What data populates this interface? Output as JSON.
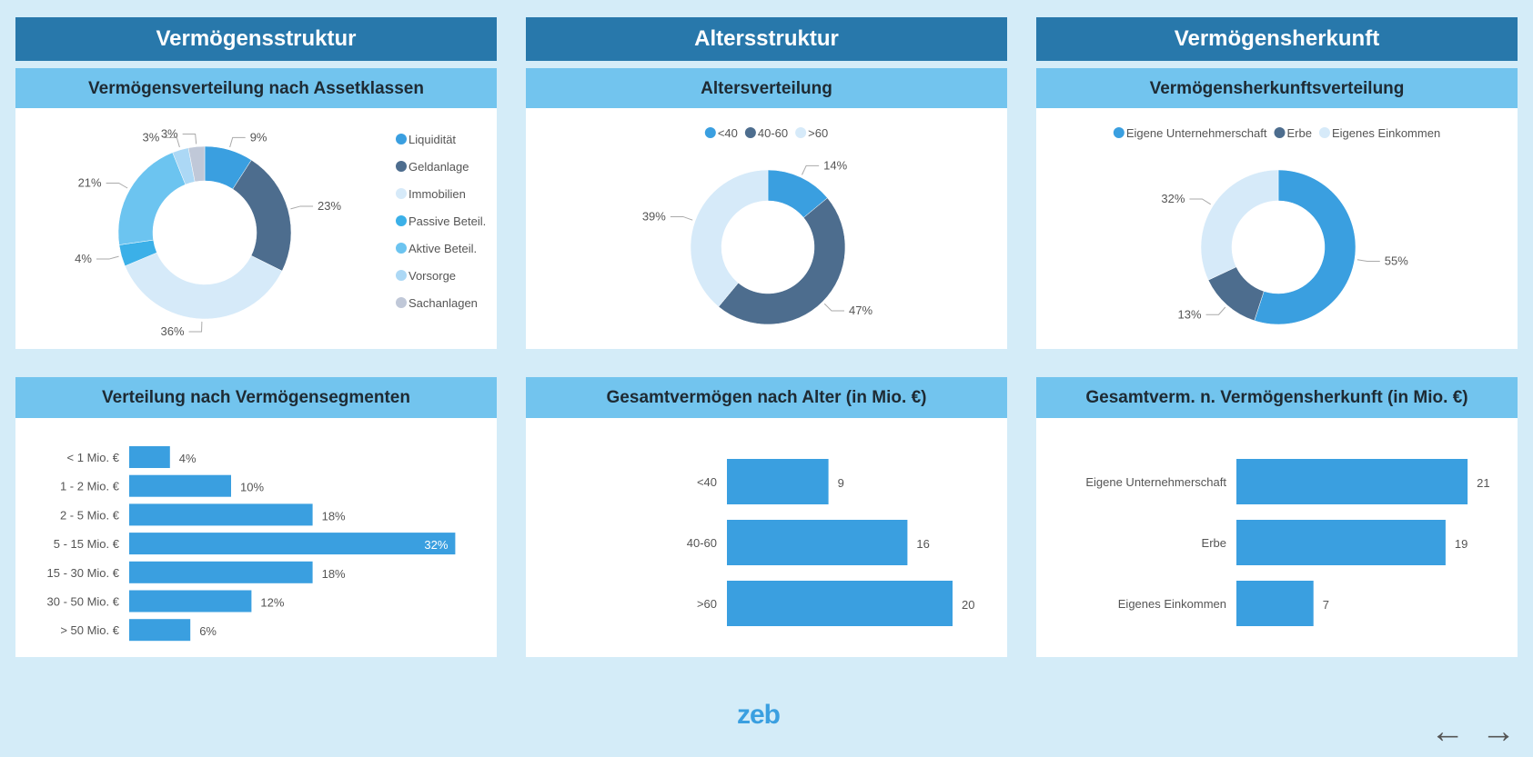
{
  "columns": [
    {
      "title": "Vermögensstruktur",
      "donut_title": "Vermögensverteilung nach Assetklassen",
      "bar_title": "Verteilung nach Vermögensegmenten"
    },
    {
      "title": "Altersstruktur",
      "donut_title": "Altersverteilung",
      "bar_title": "Gesamtvermögen nach Alter (in Mio. €)"
    },
    {
      "title": "Vermögensherkunft",
      "donut_title": "Vermögensherkunftsverteilung",
      "bar_title": "Gesamtverm. n. Vermögensherkunft (in Mio. €)"
    }
  ],
  "chart_data": [
    {
      "type": "pie",
      "title": "Vermögensverteilung nach Assetklassen",
      "legend_position": "right",
      "labels": [
        "Liquidität",
        "Geldanlage",
        "Immobilien",
        "Passive Beteil.",
        "Aktive Beteil.",
        "Vorsorge",
        "Sachanlagen"
      ],
      "values": [
        9,
        23,
        36,
        4,
        21,
        3,
        3
      ],
      "colors": [
        "#3a9fe0",
        "#4d6d8e",
        "#d6eaf9",
        "#3bb0e8",
        "#6cc4f0",
        "#acd8f5",
        "#c0c8d8"
      ]
    },
    {
      "type": "pie",
      "title": "Altersverteilung",
      "legend_position": "top",
      "labels": [
        "<40",
        "40-60",
        ">60"
      ],
      "values": [
        14,
        47,
        39
      ],
      "colors": [
        "#3a9fe0",
        "#4d6d8e",
        "#d6eaf9"
      ]
    },
    {
      "type": "pie",
      "title": "Vermögensherkunftsverteilung",
      "legend_position": "top",
      "labels": [
        "Eigene Unternehmerschaft",
        "Erbe",
        "Eigenes Einkommen"
      ],
      "values": [
        55,
        13,
        32
      ],
      "colors": [
        "#3a9fe0",
        "#4d6d8e",
        "#d6eaf9"
      ]
    },
    {
      "type": "bar",
      "title": "Verteilung nach Vermögensegmenten",
      "unit": "%",
      "categories": [
        "< 1 Mio. €",
        "1 - 2 Mio. €",
        "2 - 5 Mio. €",
        "5 - 15 Mio. €",
        "15 - 30 Mio. €",
        "30 - 50 Mio. €",
        "> 50 Mio. €"
      ],
      "values": [
        4,
        10,
        18,
        32,
        18,
        12,
        6
      ],
      "color": "#3a9fe0"
    },
    {
      "type": "bar",
      "title": "Gesamtvermögen nach Alter (in Mio. €)",
      "unit": "",
      "categories": [
        "<40",
        "40-60",
        ">60"
      ],
      "values": [
        9,
        16,
        20
      ],
      "color": "#3a9fe0"
    },
    {
      "type": "bar",
      "title": "Gesamtverm. n. Vermögensherkunft (in Mio. €)",
      "unit": "",
      "categories": [
        "Eigene Unternehmerschaft",
        "Erbe",
        "Eigenes Einkommen"
      ],
      "values": [
        21,
        19,
        7
      ],
      "color": "#3a9fe0"
    }
  ],
  "footer": {
    "logo": "zeb",
    "prev_icon": "arrow-left-icon",
    "next_icon": "arrow-right-icon",
    "prev": "←",
    "next": "→"
  }
}
